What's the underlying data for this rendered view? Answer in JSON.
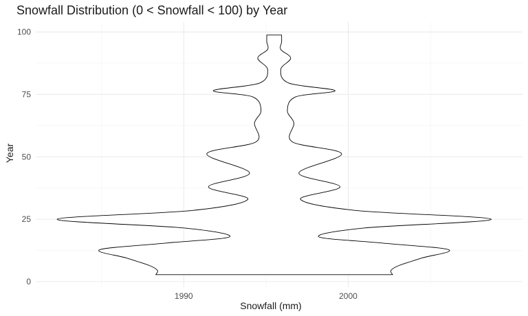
{
  "chart_data": {
    "type": "violin",
    "title": "Snowfall Distribution (0 < Snowfall < 100) by Year",
    "xlabel": "Snowfall (mm)",
    "ylabel": "Year",
    "x_ticks": [
      1990,
      2000
    ],
    "y_ticks": [
      0,
      25,
      50,
      75,
      100
    ],
    "xlim": [
      1981.0,
      2010.6
    ],
    "ylim": [
      -2.2,
      104
    ],
    "center_x": 1995.5,
    "grid": true,
    "violin_outline_color": "#000000",
    "violin_fill": "#ffffff",
    "violin_profile": {
      "description_units": "y in Year axis units, half_width in Snowfall axis units",
      "points": [
        {
          "y": 2.8,
          "half_width": 7.2
        },
        {
          "y": 4.5,
          "half_width": 7.1
        },
        {
          "y": 6.5,
          "half_width": 7.6
        },
        {
          "y": 9.5,
          "half_width": 9.0
        },
        {
          "y": 12.8,
          "half_width": 10.6
        },
        {
          "y": 15.5,
          "half_width": 6.5
        },
        {
          "y": 18.0,
          "half_width": 2.7
        },
        {
          "y": 21.5,
          "half_width": 5.5
        },
        {
          "y": 25.0,
          "half_width": 13.2
        },
        {
          "y": 28.5,
          "half_width": 5.0
        },
        {
          "y": 33.0,
          "half_width": 1.6
        },
        {
          "y": 38.0,
          "half_width": 4.0
        },
        {
          "y": 43.5,
          "half_width": 1.5
        },
        {
          "y": 51.2,
          "half_width": 4.1
        },
        {
          "y": 56.0,
          "half_width": 1.1
        },
        {
          "y": 63.5,
          "half_width": 1.2
        },
        {
          "y": 68.5,
          "half_width": 0.8
        },
        {
          "y": 74.0,
          "half_width": 1.3
        },
        {
          "y": 76.5,
          "half_width": 3.7
        },
        {
          "y": 79.5,
          "half_width": 0.9
        },
        {
          "y": 85.0,
          "half_width": 0.4
        },
        {
          "y": 89.5,
          "half_width": 1.0
        },
        {
          "y": 93.0,
          "half_width": 0.4
        },
        {
          "y": 96.0,
          "half_width": 0.45
        },
        {
          "y": 98.8,
          "half_width": 0.45
        }
      ]
    }
  }
}
